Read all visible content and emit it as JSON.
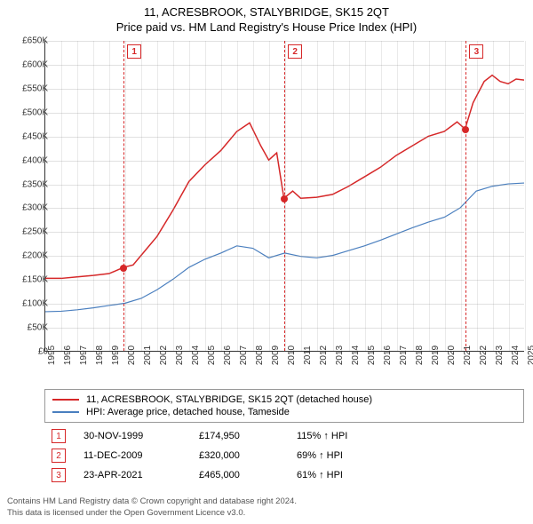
{
  "title_main": "11, ACRESBROOK, STALYBRIDGE, SK15 2QT",
  "title_sub": "Price paid vs. HM Land Registry's House Price Index (HPI)",
  "chart": {
    "type": "line",
    "xlim": [
      1995,
      2025
    ],
    "ylim": [
      0,
      650000
    ],
    "ytick_step": 50000,
    "ytick_labels": [
      "£0",
      "£50K",
      "£100K",
      "£150K",
      "£200K",
      "£250K",
      "£300K",
      "£350K",
      "£400K",
      "£450K",
      "£500K",
      "£550K",
      "£600K",
      "£650K"
    ],
    "xtick_step": 1,
    "xtick_labels": [
      "1995",
      "1996",
      "1997",
      "1998",
      "1999",
      "2000",
      "2001",
      "2002",
      "2003",
      "2004",
      "2005",
      "2006",
      "2007",
      "2008",
      "2009",
      "2010",
      "2011",
      "2012",
      "2013",
      "2014",
      "2015",
      "2016",
      "2017",
      "2018",
      "2019",
      "2020",
      "2021",
      "2022",
      "2023",
      "2024",
      "2025"
    ],
    "background_color": "#ffffff",
    "grid_color": "#888888",
    "axis_color": "#333333",
    "tick_fontsize": 10,
    "series": [
      {
        "name": "property",
        "label": "11, ACRESBROOK, STALYBRIDGE, SK15 2QT (detached house)",
        "color": "#d62728",
        "line_width": 1.5,
        "points": [
          [
            1995,
            152000
          ],
          [
            1996,
            152000
          ],
          [
            1997,
            155000
          ],
          [
            1998,
            158000
          ],
          [
            1999,
            162000
          ],
          [
            1999.9,
            174950
          ],
          [
            2000.5,
            180000
          ],
          [
            2001,
            200000
          ],
          [
            2002,
            240000
          ],
          [
            2003,
            295000
          ],
          [
            2004,
            355000
          ],
          [
            2005,
            390000
          ],
          [
            2006,
            420000
          ],
          [
            2007,
            460000
          ],
          [
            2007.8,
            478000
          ],
          [
            2008.5,
            430000
          ],
          [
            2009,
            400000
          ],
          [
            2009.5,
            415000
          ],
          [
            2009.95,
            320000
          ],
          [
            2010.5,
            335000
          ],
          [
            2011,
            320000
          ],
          [
            2012,
            322000
          ],
          [
            2013,
            328000
          ],
          [
            2014,
            345000
          ],
          [
            2015,
            365000
          ],
          [
            2016,
            385000
          ],
          [
            2017,
            410000
          ],
          [
            2018,
            430000
          ],
          [
            2019,
            450000
          ],
          [
            2020,
            460000
          ],
          [
            2020.8,
            480000
          ],
          [
            2021.3,
            465000
          ],
          [
            2021.8,
            520000
          ],
          [
            2022.5,
            565000
          ],
          [
            2023,
            578000
          ],
          [
            2023.5,
            565000
          ],
          [
            2024,
            560000
          ],
          [
            2024.5,
            570000
          ],
          [
            2025,
            568000
          ]
        ]
      },
      {
        "name": "hpi",
        "label": "HPI: Average price, detached house, Tameside",
        "color": "#4a7fbf",
        "line_width": 1.2,
        "points": [
          [
            1995,
            82000
          ],
          [
            1996,
            83000
          ],
          [
            1997,
            86000
          ],
          [
            1998,
            90000
          ],
          [
            1999,
            95000
          ],
          [
            2000,
            100000
          ],
          [
            2001,
            110000
          ],
          [
            2002,
            128000
          ],
          [
            2003,
            150000
          ],
          [
            2004,
            175000
          ],
          [
            2005,
            192000
          ],
          [
            2006,
            205000
          ],
          [
            2007,
            220000
          ],
          [
            2008,
            215000
          ],
          [
            2009,
            195000
          ],
          [
            2010,
            205000
          ],
          [
            2011,
            198000
          ],
          [
            2012,
            195000
          ],
          [
            2013,
            200000
          ],
          [
            2014,
            210000
          ],
          [
            2015,
            220000
          ],
          [
            2016,
            232000
          ],
          [
            2017,
            245000
          ],
          [
            2018,
            258000
          ],
          [
            2019,
            270000
          ],
          [
            2020,
            280000
          ],
          [
            2021,
            300000
          ],
          [
            2022,
            335000
          ],
          [
            2023,
            345000
          ],
          [
            2024,
            350000
          ],
          [
            2025,
            352000
          ]
        ]
      }
    ],
    "markers": [
      {
        "num": "1",
        "x": 1999.9,
        "y": 174950,
        "color": "#d62728"
      },
      {
        "num": "2",
        "x": 2009.95,
        "y": 320000,
        "color": "#d62728"
      },
      {
        "num": "3",
        "x": 2021.3,
        "y": 465000,
        "color": "#d62728"
      }
    ]
  },
  "legend": {
    "rows": [
      {
        "color": "#d62728",
        "label": "11, ACRESBROOK, STALYBRIDGE, SK15 2QT (detached house)"
      },
      {
        "color": "#4a7fbf",
        "label": "HPI: Average price, detached house, Tameside"
      }
    ]
  },
  "events": [
    {
      "num": "1",
      "date": "30-NOV-1999",
      "price": "£174,950",
      "pct": "115% ↑ HPI"
    },
    {
      "num": "2",
      "date": "11-DEC-2009",
      "price": "£320,000",
      "pct": "69% ↑ HPI"
    },
    {
      "num": "3",
      "date": "23-APR-2021",
      "price": "£465,000",
      "pct": "61% ↑ HPI"
    }
  ],
  "footer_line1": "Contains HM Land Registry data © Crown copyright and database right 2024.",
  "footer_line2": "This data is licensed under the Open Government Licence v3.0."
}
